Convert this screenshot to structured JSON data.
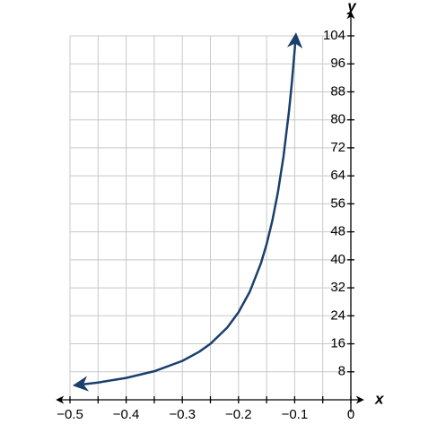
{
  "chart_data": {
    "type": "line",
    "x_label": "x",
    "y_label": "y",
    "xlim": [
      -0.5,
      0
    ],
    "ylim": [
      0,
      104
    ],
    "xticks": [
      {
        "value": -0.5,
        "label": "−0.5"
      },
      {
        "value": -0.4,
        "label": "−0.4"
      },
      {
        "value": -0.3,
        "label": "−0.3"
      },
      {
        "value": -0.2,
        "label": "−0.2"
      },
      {
        "value": -0.1,
        "label": "−0.1"
      },
      0
    ],
    "xgrid": [
      -0.45,
      -0.35,
      -0.25,
      -0.15,
      -0.05
    ],
    "yticks": [
      8,
      16,
      24,
      32,
      40,
      48,
      56,
      64,
      72,
      80,
      88,
      96,
      104
    ],
    "grid": true,
    "series": [
      {
        "color": "#1b3f6b",
        "x": [
          -0.49,
          -0.45,
          -0.4,
          -0.35,
          -0.3,
          -0.27,
          -0.25,
          -0.22,
          -0.2,
          -0.18,
          -0.16,
          -0.15,
          -0.14,
          -0.13,
          -0.12,
          -0.11,
          -0.105,
          -0.1,
          -0.098
        ],
        "values": [
          4.16,
          4.94,
          6.25,
          8.16,
          11.11,
          13.72,
          16,
          20.66,
          25,
          30.86,
          39.06,
          44.44,
          51.02,
          59.17,
          69.44,
          82.64,
          90.7,
          100,
          104.1
        ]
      }
    ]
  }
}
